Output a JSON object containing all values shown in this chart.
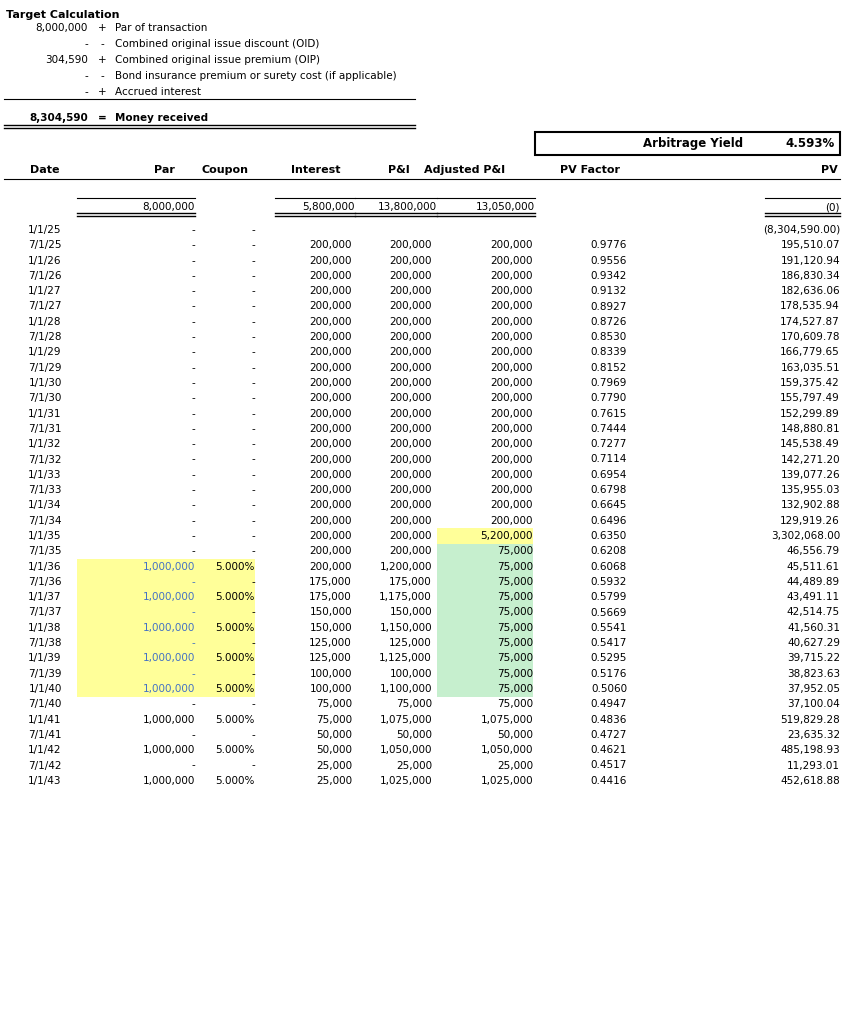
{
  "title": "Target Calculation",
  "summary_rows": [
    {
      "value": "8,000,000",
      "sign": "+",
      "label": "Par of transaction"
    },
    {
      "value": "-",
      "sign": "-",
      "label": "Combined original issue discount (OID)"
    },
    {
      "value": "304,590",
      "sign": "+",
      "label": "Combined original issue premium (OIP)"
    },
    {
      "value": "-",
      "sign": "-",
      "label": "Bond insurance premium or surety cost (if applicable)"
    },
    {
      "value": "-",
      "sign": "+",
      "label": "Accrued interest"
    },
    {
      "value": "8,304,590",
      "sign": "=",
      "label": "Money received"
    }
  ],
  "arbitrage_yield_label": "Arbitrage Yield",
  "arbitrage_yield_value": "4.593%",
  "col_headers": [
    "Date",
    "Par",
    "Coupon",
    "Interest",
    "P&I",
    "Adjusted P&I",
    "PV Factor",
    "PV"
  ],
  "totals_row": {
    "par": "8,000,000",
    "interest": "5,800,000",
    "pl": "13,800,000",
    "adj_pl": "13,050,000",
    "pv": "(0)"
  },
  "data_rows": [
    {
      "date": "1/1/25",
      "par": "-",
      "coupon": "-",
      "interest": "",
      "pl": "",
      "adj_pl": "",
      "pv_factor": "",
      "pv": "(8,304,590.00)",
      "par_bg": null,
      "adj_pl_bg": null
    },
    {
      "date": "7/1/25",
      "par": "-",
      "coupon": "-",
      "interest": "200,000",
      "pl": "200,000",
      "adj_pl": "200,000",
      "pv_factor": "0.9776",
      "pv": "195,510.07",
      "par_bg": null,
      "adj_pl_bg": null
    },
    {
      "date": "1/1/26",
      "par": "-",
      "coupon": "-",
      "interest": "200,000",
      "pl": "200,000",
      "adj_pl": "200,000",
      "pv_factor": "0.9556",
      "pv": "191,120.94",
      "par_bg": null,
      "adj_pl_bg": null
    },
    {
      "date": "7/1/26",
      "par": "-",
      "coupon": "-",
      "interest": "200,000",
      "pl": "200,000",
      "adj_pl": "200,000",
      "pv_factor": "0.9342",
      "pv": "186,830.34",
      "par_bg": null,
      "adj_pl_bg": null
    },
    {
      "date": "1/1/27",
      "par": "-",
      "coupon": "-",
      "interest": "200,000",
      "pl": "200,000",
      "adj_pl": "200,000",
      "pv_factor": "0.9132",
      "pv": "182,636.06",
      "par_bg": null,
      "adj_pl_bg": null
    },
    {
      "date": "7/1/27",
      "par": "-",
      "coupon": "-",
      "interest": "200,000",
      "pl": "200,000",
      "adj_pl": "200,000",
      "pv_factor": "0.8927",
      "pv": "178,535.94",
      "par_bg": null,
      "adj_pl_bg": null
    },
    {
      "date": "1/1/28",
      "par": "-",
      "coupon": "-",
      "interest": "200,000",
      "pl": "200,000",
      "adj_pl": "200,000",
      "pv_factor": "0.8726",
      "pv": "174,527.87",
      "par_bg": null,
      "adj_pl_bg": null
    },
    {
      "date": "7/1/28",
      "par": "-",
      "coupon": "-",
      "interest": "200,000",
      "pl": "200,000",
      "adj_pl": "200,000",
      "pv_factor": "0.8530",
      "pv": "170,609.78",
      "par_bg": null,
      "adj_pl_bg": null
    },
    {
      "date": "1/1/29",
      "par": "-",
      "coupon": "-",
      "interest": "200,000",
      "pl": "200,000",
      "adj_pl": "200,000",
      "pv_factor": "0.8339",
      "pv": "166,779.65",
      "par_bg": null,
      "adj_pl_bg": null
    },
    {
      "date": "7/1/29",
      "par": "-",
      "coupon": "-",
      "interest": "200,000",
      "pl": "200,000",
      "adj_pl": "200,000",
      "pv_factor": "0.8152",
      "pv": "163,035.51",
      "par_bg": null,
      "adj_pl_bg": null
    },
    {
      "date": "1/1/30",
      "par": "-",
      "coupon": "-",
      "interest": "200,000",
      "pl": "200,000",
      "adj_pl": "200,000",
      "pv_factor": "0.7969",
      "pv": "159,375.42",
      "par_bg": null,
      "adj_pl_bg": null
    },
    {
      "date": "7/1/30",
      "par": "-",
      "coupon": "-",
      "interest": "200,000",
      "pl": "200,000",
      "adj_pl": "200,000",
      "pv_factor": "0.7790",
      "pv": "155,797.49",
      "par_bg": null,
      "adj_pl_bg": null
    },
    {
      "date": "1/1/31",
      "par": "-",
      "coupon": "-",
      "interest": "200,000",
      "pl": "200,000",
      "adj_pl": "200,000",
      "pv_factor": "0.7615",
      "pv": "152,299.89",
      "par_bg": null,
      "adj_pl_bg": null
    },
    {
      "date": "7/1/31",
      "par": "-",
      "coupon": "-",
      "interest": "200,000",
      "pl": "200,000",
      "adj_pl": "200,000",
      "pv_factor": "0.7444",
      "pv": "148,880.81",
      "par_bg": null,
      "adj_pl_bg": null
    },
    {
      "date": "1/1/32",
      "par": "-",
      "coupon": "-",
      "interest": "200,000",
      "pl": "200,000",
      "adj_pl": "200,000",
      "pv_factor": "0.7277",
      "pv": "145,538.49",
      "par_bg": null,
      "adj_pl_bg": null
    },
    {
      "date": "7/1/32",
      "par": "-",
      "coupon": "-",
      "interest": "200,000",
      "pl": "200,000",
      "adj_pl": "200,000",
      "pv_factor": "0.7114",
      "pv": "142,271.20",
      "par_bg": null,
      "adj_pl_bg": null
    },
    {
      "date": "1/1/33",
      "par": "-",
      "coupon": "-",
      "interest": "200,000",
      "pl": "200,000",
      "adj_pl": "200,000",
      "pv_factor": "0.6954",
      "pv": "139,077.26",
      "par_bg": null,
      "adj_pl_bg": null
    },
    {
      "date": "7/1/33",
      "par": "-",
      "coupon": "-",
      "interest": "200,000",
      "pl": "200,000",
      "adj_pl": "200,000",
      "pv_factor": "0.6798",
      "pv": "135,955.03",
      "par_bg": null,
      "adj_pl_bg": null
    },
    {
      "date": "1/1/34",
      "par": "-",
      "coupon": "-",
      "interest": "200,000",
      "pl": "200,000",
      "adj_pl": "200,000",
      "pv_factor": "0.6645",
      "pv": "132,902.88",
      "par_bg": null,
      "adj_pl_bg": null
    },
    {
      "date": "7/1/34",
      "par": "-",
      "coupon": "-",
      "interest": "200,000",
      "pl": "200,000",
      "adj_pl": "200,000",
      "pv_factor": "0.6496",
      "pv": "129,919.26",
      "par_bg": null,
      "adj_pl_bg": null
    },
    {
      "date": "1/1/35",
      "par": "-",
      "coupon": "-",
      "interest": "200,000",
      "pl": "200,000",
      "adj_pl": "5,200,000",
      "pv_factor": "0.6350",
      "pv": "3,302,068.00",
      "par_bg": null,
      "adj_pl_bg": "#ffff99"
    },
    {
      "date": "7/1/35",
      "par": "-",
      "coupon": "-",
      "interest": "200,000",
      "pl": "200,000",
      "adj_pl": "75,000",
      "pv_factor": "0.6208",
      "pv": "46,556.79",
      "par_bg": null,
      "adj_pl_bg": "#c6efce"
    },
    {
      "date": "1/1/36",
      "par": "1,000,000",
      "coupon": "5.000%",
      "interest": "200,000",
      "pl": "1,200,000",
      "adj_pl": "75,000",
      "pv_factor": "0.6068",
      "pv": "45,511.61",
      "par_bg": "#ffff99",
      "adj_pl_bg": "#c6efce"
    },
    {
      "date": "7/1/36",
      "par": "-",
      "coupon": "-",
      "interest": "175,000",
      "pl": "175,000",
      "adj_pl": "75,000",
      "pv_factor": "0.5932",
      "pv": "44,489.89",
      "par_bg": "#ffff99",
      "adj_pl_bg": "#c6efce"
    },
    {
      "date": "1/1/37",
      "par": "1,000,000",
      "coupon": "5.000%",
      "interest": "175,000",
      "pl": "1,175,000",
      "adj_pl": "75,000",
      "pv_factor": "0.5799",
      "pv": "43,491.11",
      "par_bg": "#ffff99",
      "adj_pl_bg": "#c6efce"
    },
    {
      "date": "7/1/37",
      "par": "-",
      "coupon": "-",
      "interest": "150,000",
      "pl": "150,000",
      "adj_pl": "75,000",
      "pv_factor": "0.5669",
      "pv": "42,514.75",
      "par_bg": "#ffff99",
      "adj_pl_bg": "#c6efce"
    },
    {
      "date": "1/1/38",
      "par": "1,000,000",
      "coupon": "5.000%",
      "interest": "150,000",
      "pl": "1,150,000",
      "adj_pl": "75,000",
      "pv_factor": "0.5541",
      "pv": "41,560.31",
      "par_bg": "#ffff99",
      "adj_pl_bg": "#c6efce"
    },
    {
      "date": "7/1/38",
      "par": "-",
      "coupon": "-",
      "interest": "125,000",
      "pl": "125,000",
      "adj_pl": "75,000",
      "pv_factor": "0.5417",
      "pv": "40,627.29",
      "par_bg": "#ffff99",
      "adj_pl_bg": "#c6efce"
    },
    {
      "date": "1/1/39",
      "par": "1,000,000",
      "coupon": "5.000%",
      "interest": "125,000",
      "pl": "1,125,000",
      "adj_pl": "75,000",
      "pv_factor": "0.5295",
      "pv": "39,715.22",
      "par_bg": "#ffff99",
      "adj_pl_bg": "#c6efce"
    },
    {
      "date": "7/1/39",
      "par": "-",
      "coupon": "-",
      "interest": "100,000",
      "pl": "100,000",
      "adj_pl": "75,000",
      "pv_factor": "0.5176",
      "pv": "38,823.63",
      "par_bg": "#ffff99",
      "adj_pl_bg": "#c6efce"
    },
    {
      "date": "1/1/40",
      "par": "1,000,000",
      "coupon": "5.000%",
      "interest": "100,000",
      "pl": "1,100,000",
      "adj_pl": "75,000",
      "pv_factor": "0.5060",
      "pv": "37,952.05",
      "par_bg": "#ffff99",
      "adj_pl_bg": "#c6efce"
    },
    {
      "date": "7/1/40",
      "par": "-",
      "coupon": "-",
      "interest": "75,000",
      "pl": "75,000",
      "adj_pl": "75,000",
      "pv_factor": "0.4947",
      "pv": "37,100.04",
      "par_bg": null,
      "adj_pl_bg": null
    },
    {
      "date": "1/1/41",
      "par": "1,000,000",
      "coupon": "5.000%",
      "interest": "75,000",
      "pl": "1,075,000",
      "adj_pl": "1,075,000",
      "pv_factor": "0.4836",
      "pv": "519,829.28",
      "par_bg": null,
      "adj_pl_bg": null
    },
    {
      "date": "7/1/41",
      "par": "-",
      "coupon": "-",
      "interest": "50,000",
      "pl": "50,000",
      "adj_pl": "50,000",
      "pv_factor": "0.4727",
      "pv": "23,635.32",
      "par_bg": null,
      "adj_pl_bg": null
    },
    {
      "date": "1/1/42",
      "par": "1,000,000",
      "coupon": "5.000%",
      "interest": "50,000",
      "pl": "1,050,000",
      "adj_pl": "1,050,000",
      "pv_factor": "0.4621",
      "pv": "485,198.93",
      "par_bg": null,
      "adj_pl_bg": null
    },
    {
      "date": "7/1/42",
      "par": "-",
      "coupon": "-",
      "interest": "25,000",
      "pl": "25,000",
      "adj_pl": "25,000",
      "pv_factor": "0.4517",
      "pv": "11,293.01",
      "par_bg": null,
      "adj_pl_bg": null
    },
    {
      "date": "1/1/43",
      "par": "1,000,000",
      "coupon": "5.000%",
      "interest": "25,000",
      "pl": "1,025,000",
      "adj_pl": "1,025,000",
      "pv_factor": "0.4416",
      "pv": "452,618.88",
      "par_bg": null,
      "adj_pl_bg": null
    }
  ],
  "par_color_highlight": "#4472c4",
  "yellow_bg": "#ffff99",
  "green_bg": "#c6efce"
}
